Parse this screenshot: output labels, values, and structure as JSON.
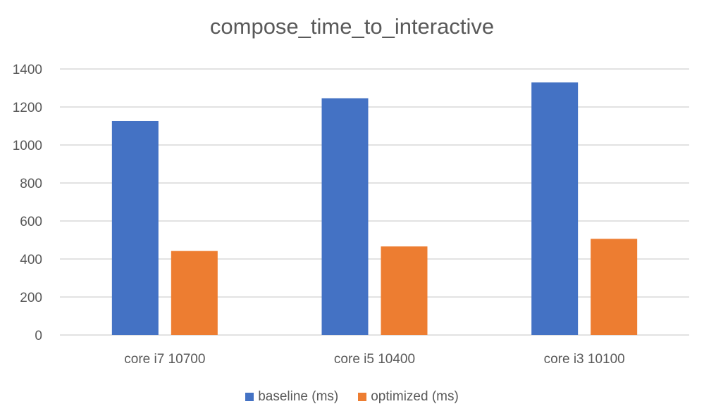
{
  "chart_data": {
    "type": "bar",
    "title": "compose_time_to_interactive",
    "categories": [
      "core i7 10700",
      "core i5 10400",
      "core i3 10100"
    ],
    "series": [
      {
        "name": "baseline (ms)",
        "color": "#4472C4",
        "values": [
          1126,
          1246,
          1329
        ]
      },
      {
        "name": "optimized (ms)",
        "color": "#ED7D31",
        "values": [
          442,
          466,
          506
        ]
      }
    ],
    "yticks": [
      0,
      200,
      400,
      600,
      800,
      1000,
      1200,
      1400
    ],
    "ylim": [
      0,
      1400
    ],
    "xlabel": "",
    "ylabel": "",
    "grid": true,
    "legend": "bottom"
  }
}
